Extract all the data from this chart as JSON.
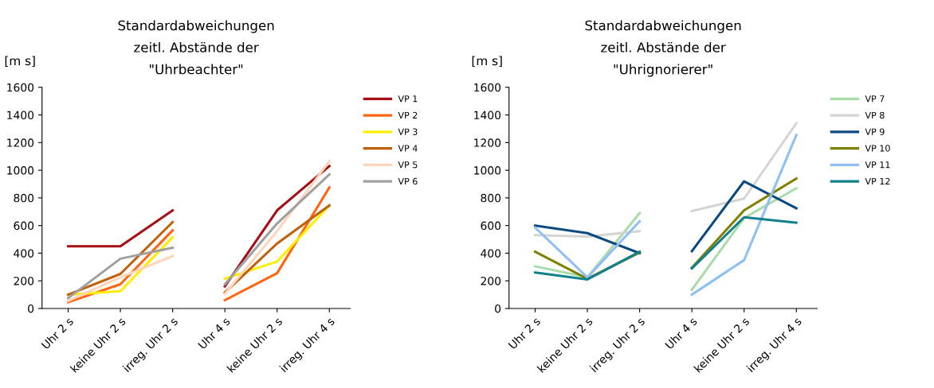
{
  "chart_data": [
    {
      "type": "line",
      "title": "Standardabweichungen\nzeitl. Abstände der\n\"Uhrbeachter\"",
      "ylabel": "[m s]",
      "categories": [
        "Uhr 2 s",
        "keine Uhr 2 s",
        "irreg. Uhr 2 s",
        "Uhr 4 s",
        "keine Uhr 2 s",
        "irreg. Uhr 4 s"
      ],
      "ylim": [
        0,
        1600
      ],
      "yticks": [
        0,
        200,
        400,
        600,
        800,
        1000,
        1200,
        1400,
        1600
      ],
      "grid": false,
      "legend": "top right",
      "marker": "none",
      "line_style": "solid",
      "series": [
        {
          "name": "VP 1",
          "color": "#a50f15",
          "values": [
            450,
            450,
            710,
            null,
            null,
            null
          ]
        },
        {
          "color": "#a50f15",
          "values": [
            null,
            null,
            null,
            160,
            710,
            1030
          ]
        },
        {
          "name": "VP 2",
          "color": "#ff6410",
          "values": [
            45,
            175,
            565,
            null,
            null,
            null
          ]
        },
        {
          "color": "#ff6410",
          "values": [
            null,
            null,
            null,
            60,
            255,
            875
          ]
        },
        {
          "name": "VP 3",
          "color": "#ffee00",
          "values": [
            100,
            125,
            515,
            null,
            null,
            null
          ]
        },
        {
          "color": "#ffee00",
          "values": [
            null,
            null,
            null,
            215,
            340,
            745
          ]
        },
        {
          "name": "VP 4",
          "color": "#c0600a",
          "values": [
            100,
            250,
            625,
            null,
            null,
            null
          ]
        },
        {
          "color": "#c0600a",
          "values": [
            null,
            null,
            null,
            115,
            470,
            745
          ]
        },
        {
          "name": "VP 5",
          "color": "#fdd5b8",
          "values": [
            55,
            225,
            380,
            null,
            null,
            null
          ]
        },
        {
          "color": "#fdd5b8",
          "values": [
            null,
            null,
            null,
            105,
            560,
            1065
          ]
        },
        {
          "name": "VP 6",
          "color": "#a0a0a0",
          "values": [
            75,
            360,
            440,
            null,
            null,
            null
          ]
        },
        {
          "color": "#a0a0a0",
          "values": [
            null,
            null,
            null,
            175,
            615,
            970
          ]
        }
      ]
    },
    {
      "type": "line",
      "title": "Standardabweichungen\nzeitl. Abstände der\n\"Uhrignorierer\"",
      "ylabel": "[m s]",
      "categories": [
        "Uhr 2 s",
        "keine Uhr 2 s",
        "irreg. Uhr 2 s",
        "Uhr 4 s",
        "keine Uhr 2 s",
        "irreg. Uhr 4 s"
      ],
      "ylim": [
        0,
        1600
      ],
      "yticks": [
        0,
        200,
        400,
        600,
        800,
        1000,
        1200,
        1400,
        1600
      ],
      "grid": false,
      "legend": "top right",
      "marker": "none",
      "line_style": "solid",
      "series": [
        {
          "name": "VP 7",
          "color": "#a8dca8",
          "values": [
            305,
            225,
            690,
            null,
            null,
            null
          ]
        },
        {
          "color": "#a8dca8",
          "values": [
            null,
            null,
            null,
            135,
            655,
            870
          ]
        },
        {
          "name": "VP 8",
          "color": "#d4d4d4",
          "values": [
            530,
            520,
            560,
            null,
            null,
            null
          ]
        },
        {
          "color": "#d4d4d4",
          "values": [
            null,
            null,
            null,
            705,
            795,
            1340
          ]
        },
        {
          "name": "VP 9",
          "color": "#0a4a80",
          "values": [
            600,
            545,
            400,
            null,
            null,
            null
          ]
        },
        {
          "color": "#0a4a80",
          "values": [
            null,
            null,
            null,
            415,
            920,
            725
          ]
        },
        {
          "name": "VP 10",
          "color": "#808000",
          "values": [
            410,
            215,
            405,
            null,
            null,
            null
          ]
        },
        {
          "color": "#808000",
          "values": [
            null,
            null,
            null,
            295,
            710,
            940
          ]
        },
        {
          "name": "VP 11",
          "color": "#90bff5",
          "values": [
            585,
            225,
            630,
            null,
            null,
            null
          ]
        },
        {
          "color": "#90bff5",
          "values": [
            null,
            null,
            null,
            100,
            350,
            1255
          ]
        },
        {
          "name": "VP 12",
          "color": "#10808c",
          "values": [
            260,
            210,
            410,
            null,
            null,
            null
          ]
        },
        {
          "color": "#10808c",
          "values": [
            null,
            null,
            null,
            290,
            660,
            620
          ]
        }
      ]
    }
  ]
}
